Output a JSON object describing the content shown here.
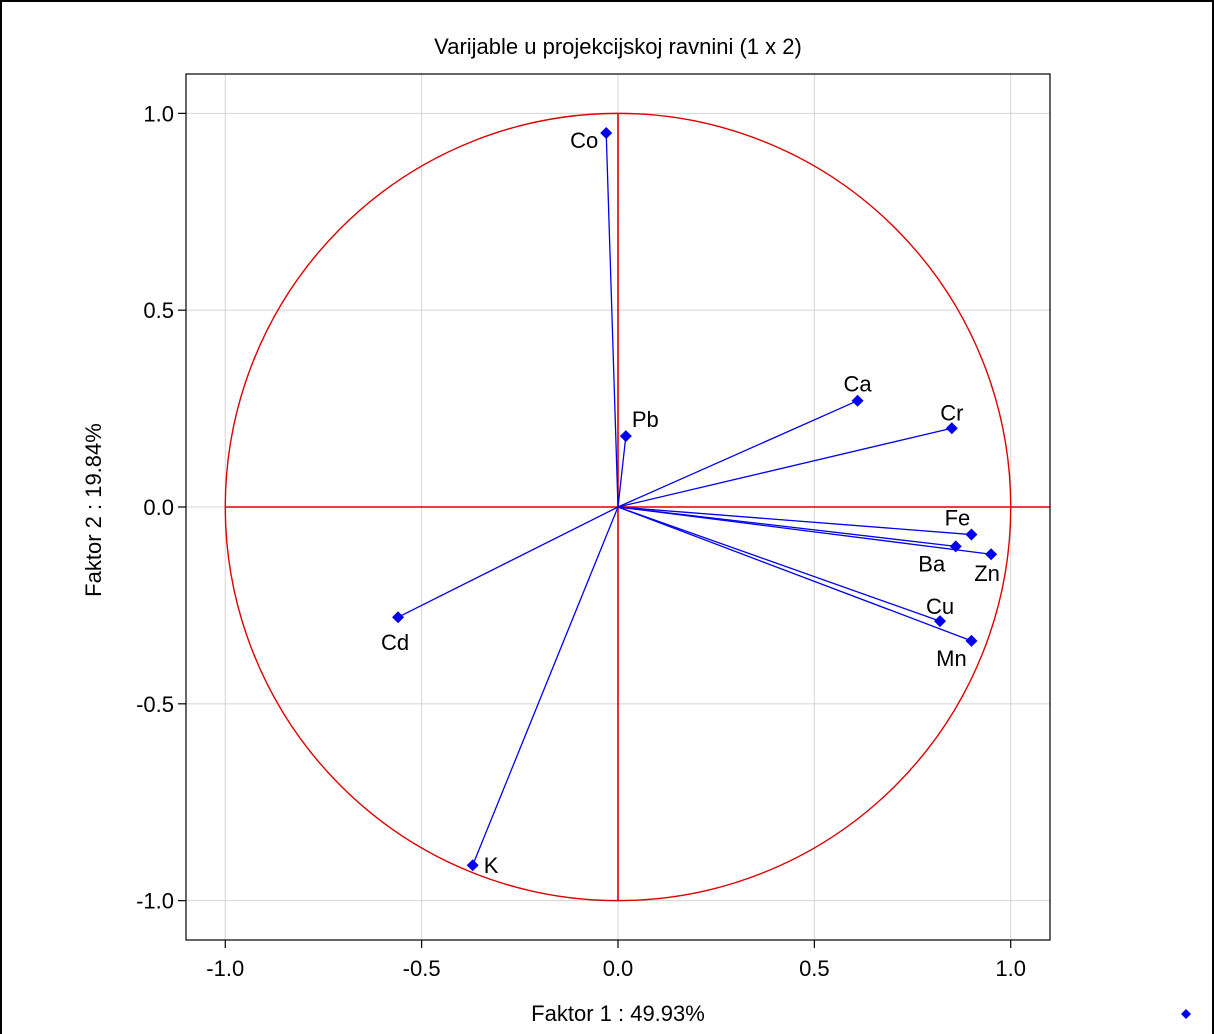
{
  "chart_data": {
    "type": "scatter",
    "title": "Varijable u projekcijskoj ravnini (1 x 2)",
    "xlabel": "Faktor 1 : 49.93%",
    "ylabel": "Faktor 2 : 19.84%",
    "xlim": [
      -1.1,
      1.1
    ],
    "ylim": [
      -1.1,
      1.1
    ],
    "xticks": [
      "-1.0",
      "-0.5",
      "0.0",
      "0.5",
      "1.0"
    ],
    "yticks": [
      "1.0",
      "0.5",
      "0.0",
      "-0.5",
      "-1.0"
    ],
    "grid": true,
    "unit_circle": true,
    "vectors_from_origin": true,
    "colors": {
      "points": "#0000ee",
      "circle_axes": "#dd0000",
      "grid": "#d4d4d4"
    },
    "points": [
      {
        "label": "Co",
        "x": -0.03,
        "y": 0.95
      },
      {
        "label": "Pb",
        "x": 0.02,
        "y": 0.18
      },
      {
        "label": "Ca",
        "x": 0.61,
        "y": 0.27
      },
      {
        "label": "Cr",
        "x": 0.85,
        "y": 0.2
      },
      {
        "label": "Fe",
        "x": 0.9,
        "y": -0.07
      },
      {
        "label": "Ba",
        "x": 0.86,
        "y": -0.1
      },
      {
        "label": "Zn",
        "x": 0.95,
        "y": -0.12
      },
      {
        "label": "Cu",
        "x": 0.82,
        "y": -0.29
      },
      {
        "label": "Mn",
        "x": 0.9,
        "y": -0.34
      },
      {
        "label": "Cd",
        "x": -0.56,
        "y": -0.28
      },
      {
        "label": "K",
        "x": -0.37,
        "y": -0.91
      }
    ]
  }
}
